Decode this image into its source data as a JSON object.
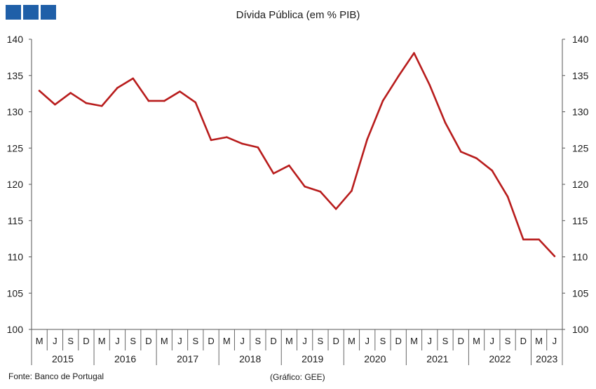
{
  "logo": {
    "squares": 3,
    "color": "#1f5fa8"
  },
  "chart_data": {
    "type": "line",
    "title": "Dívida Pública (em % PIB)",
    "xlabel": "",
    "ylabel": "",
    "ylim": [
      100,
      140
    ],
    "yticks": [
      100,
      105,
      110,
      115,
      120,
      125,
      130,
      135,
      140
    ],
    "secondary_yaxis": true,
    "grid": false,
    "line_color": "#b81c1c",
    "quarter_labels": [
      "M",
      "J",
      "S",
      "D",
      "M",
      "J",
      "S",
      "D",
      "M",
      "J",
      "S",
      "D",
      "M",
      "J",
      "S",
      "D",
      "M",
      "J",
      "S",
      "D",
      "M",
      "J",
      "S",
      "D",
      "M",
      "J",
      "S",
      "D",
      "M",
      "J",
      "S",
      "D",
      "M",
      "J"
    ],
    "years": [
      {
        "label": "2015",
        "quarters": 4
      },
      {
        "label": "2016",
        "quarters": 4
      },
      {
        "label": "2017",
        "quarters": 4
      },
      {
        "label": "2018",
        "quarters": 4
      },
      {
        "label": "2019",
        "quarters": 4
      },
      {
        "label": "2020",
        "quarters": 4
      },
      {
        "label": "2021",
        "quarters": 4
      },
      {
        "label": "2022",
        "quarters": 4
      },
      {
        "label": "2023",
        "quarters": 2
      }
    ],
    "series": [
      {
        "values": [
          132.9,
          131.0,
          132.6,
          131.2,
          130.8,
          133.3,
          134.6,
          131.5,
          131.5,
          132.8,
          131.3,
          126.1,
          126.5,
          125.6,
          125.1,
          121.5,
          122.6,
          119.7,
          119.0,
          116.6,
          119.1,
          126.2,
          131.5,
          134.9,
          138.1,
          133.7,
          128.5,
          124.5,
          123.6,
          121.9,
          118.3,
          112.4,
          112.4,
          110.1
        ]
      }
    ],
    "source": "Fonte: Banco de Portugal",
    "credit": "(Gráfico: GEE)"
  }
}
